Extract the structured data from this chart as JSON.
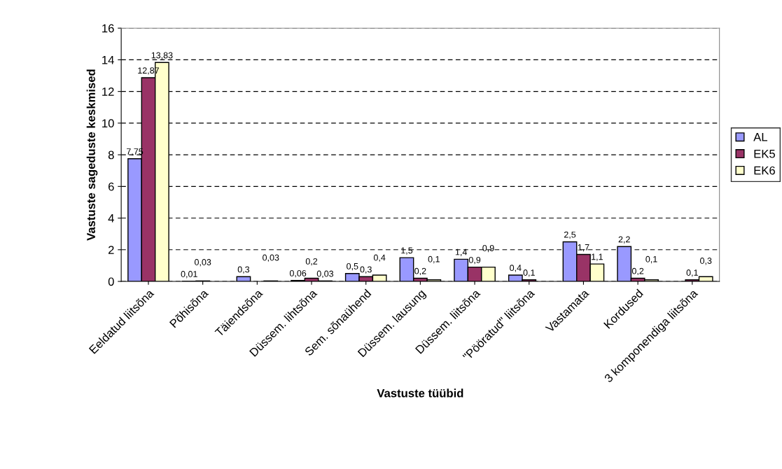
{
  "chart_data": {
    "type": "bar",
    "xlabel": "Vastuste tüübid",
    "ylabel": "Vastuste sageduste keskmised",
    "categories": [
      "Eeldatud liitsõna",
      "Põhisõna",
      "Täiendsõna",
      "Düssem. lihtsõna",
      "Sem. sõnaühend",
      "Düssem. lausung",
      "Düssem. liitsõna",
      "\"Pööratud\" liitsõna",
      "Vastamata",
      "Kordused",
      "3 komponendiga liitsõna"
    ],
    "series": [
      {
        "name": "AL",
        "color": "#9999ff",
        "values": [
          7.75,
          0.01,
          0.3,
          0.06,
          0.5,
          1.5,
          1.4,
          0.4,
          2.5,
          2.2,
          null
        ],
        "value_labels": [
          "7,75",
          "0,01",
          "0,3",
          "0,06",
          "0,5",
          "1,5",
          "1,4",
          "0,4",
          "2,5",
          "2,2",
          null
        ]
      },
      {
        "name": "EK5",
        "color": "#993366",
        "values": [
          12.87,
          0.03,
          null,
          0.2,
          0.3,
          0.2,
          0.9,
          0.1,
          1.7,
          0.2,
          0.1
        ],
        "value_labels": [
          "12,87",
          "0,03",
          null,
          "0,2",
          "0,3",
          "0,2",
          "0,9",
          "0,1",
          "1,7",
          "0,2",
          "0,1"
        ]
      },
      {
        "name": "EK6",
        "color": "#ffffcc",
        "values": [
          13.83,
          null,
          0.03,
          0.03,
          0.4,
          0.1,
          0.9,
          null,
          1.1,
          0.1,
          0.3
        ],
        "value_labels": [
          "13,83",
          null,
          "0,03",
          "0,03",
          "0,4",
          "0,1",
          "0,9",
          null,
          "1,1",
          "0,1",
          "0,3"
        ]
      }
    ],
    "ylim": [
      0,
      16
    ],
    "yticks": [
      0,
      2,
      4,
      6,
      8,
      10,
      12,
      14,
      16
    ],
    "grid": "y",
    "legend": "right"
  }
}
